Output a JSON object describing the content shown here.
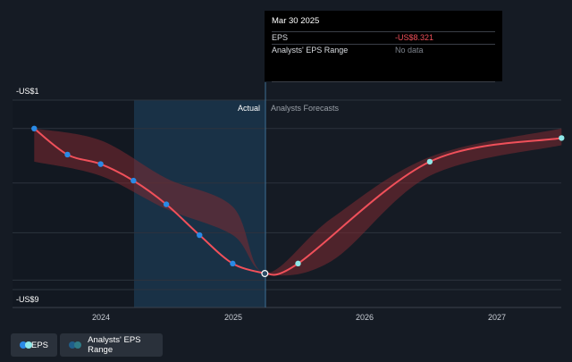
{
  "tooltip": {
    "date": "Mar 30 2025",
    "rows": [
      {
        "label": "EPS",
        "value": "-US$8.321"
      },
      {
        "label": "Analysts' EPS Range",
        "value": "No data"
      }
    ]
  },
  "legend": {
    "eps_label": "EPS",
    "range_label": "Analysts' EPS Range"
  },
  "colors": {
    "eps_line": "#f0505a",
    "eps_actual_dot": "#2a8ae6",
    "eps_forecast_dot": "#8fe8e8",
    "range_band": "#7d2a31",
    "highlight": "#1b3a52"
  },
  "chart_data": {
    "type": "line",
    "title": "",
    "xlabel": "",
    "ylabel": "",
    "x_ticks": [
      "2024",
      "2025",
      "2026",
      "2027"
    ],
    "y_ticks": [
      "-US$1",
      "-US$9"
    ],
    "ylim": [
      -9,
      -1
    ],
    "region_labels": {
      "actual": "Actual",
      "forecast": "Analysts Forecasts"
    },
    "series": [
      {
        "name": "EPS",
        "points": [
          {
            "x": "2023-06-30",
            "y": -2.2
          },
          {
            "x": "2023-09-30",
            "y": -3.3
          },
          {
            "x": "2023-12-31",
            "y": -3.7
          },
          {
            "x": "2024-03-31",
            "y": -4.4
          },
          {
            "x": "2024-06-30",
            "y": -5.4
          },
          {
            "x": "2024-09-30",
            "y": -6.7
          },
          {
            "x": "2024-12-31",
            "y": -7.9
          },
          {
            "x": "2025-03-30",
            "y": -8.321
          }
        ]
      },
      {
        "name": "Analysts Forecasts",
        "points": [
          {
            "x": "2025-03-30",
            "y": -8.321
          },
          {
            "x": "2025-06-30",
            "y": -7.9
          },
          {
            "x": "2026-06-30",
            "y": -3.6
          },
          {
            "x": "2027-06-30",
            "y": -2.6
          }
        ]
      }
    ],
    "range": [
      {
        "x": "2023-06-30",
        "low": -3.6,
        "high": -2.2
      },
      {
        "x": "2023-12-31",
        "low": -4.2,
        "high": -2.7
      },
      {
        "x": "2024-06-30",
        "low": -5.6,
        "high": -4.3
      },
      {
        "x": "2024-12-31",
        "low": -6.7,
        "high": -5.5
      },
      {
        "x": "2025-03-30",
        "low": -8.3,
        "high": -8.3
      },
      {
        "x": "2025-09-30",
        "low": -7.8,
        "high": -6.0
      },
      {
        "x": "2026-06-30",
        "low": -4.2,
        "high": -3.4
      },
      {
        "x": "2027-06-30",
        "low": -2.9,
        "high": -2.2
      }
    ]
  }
}
